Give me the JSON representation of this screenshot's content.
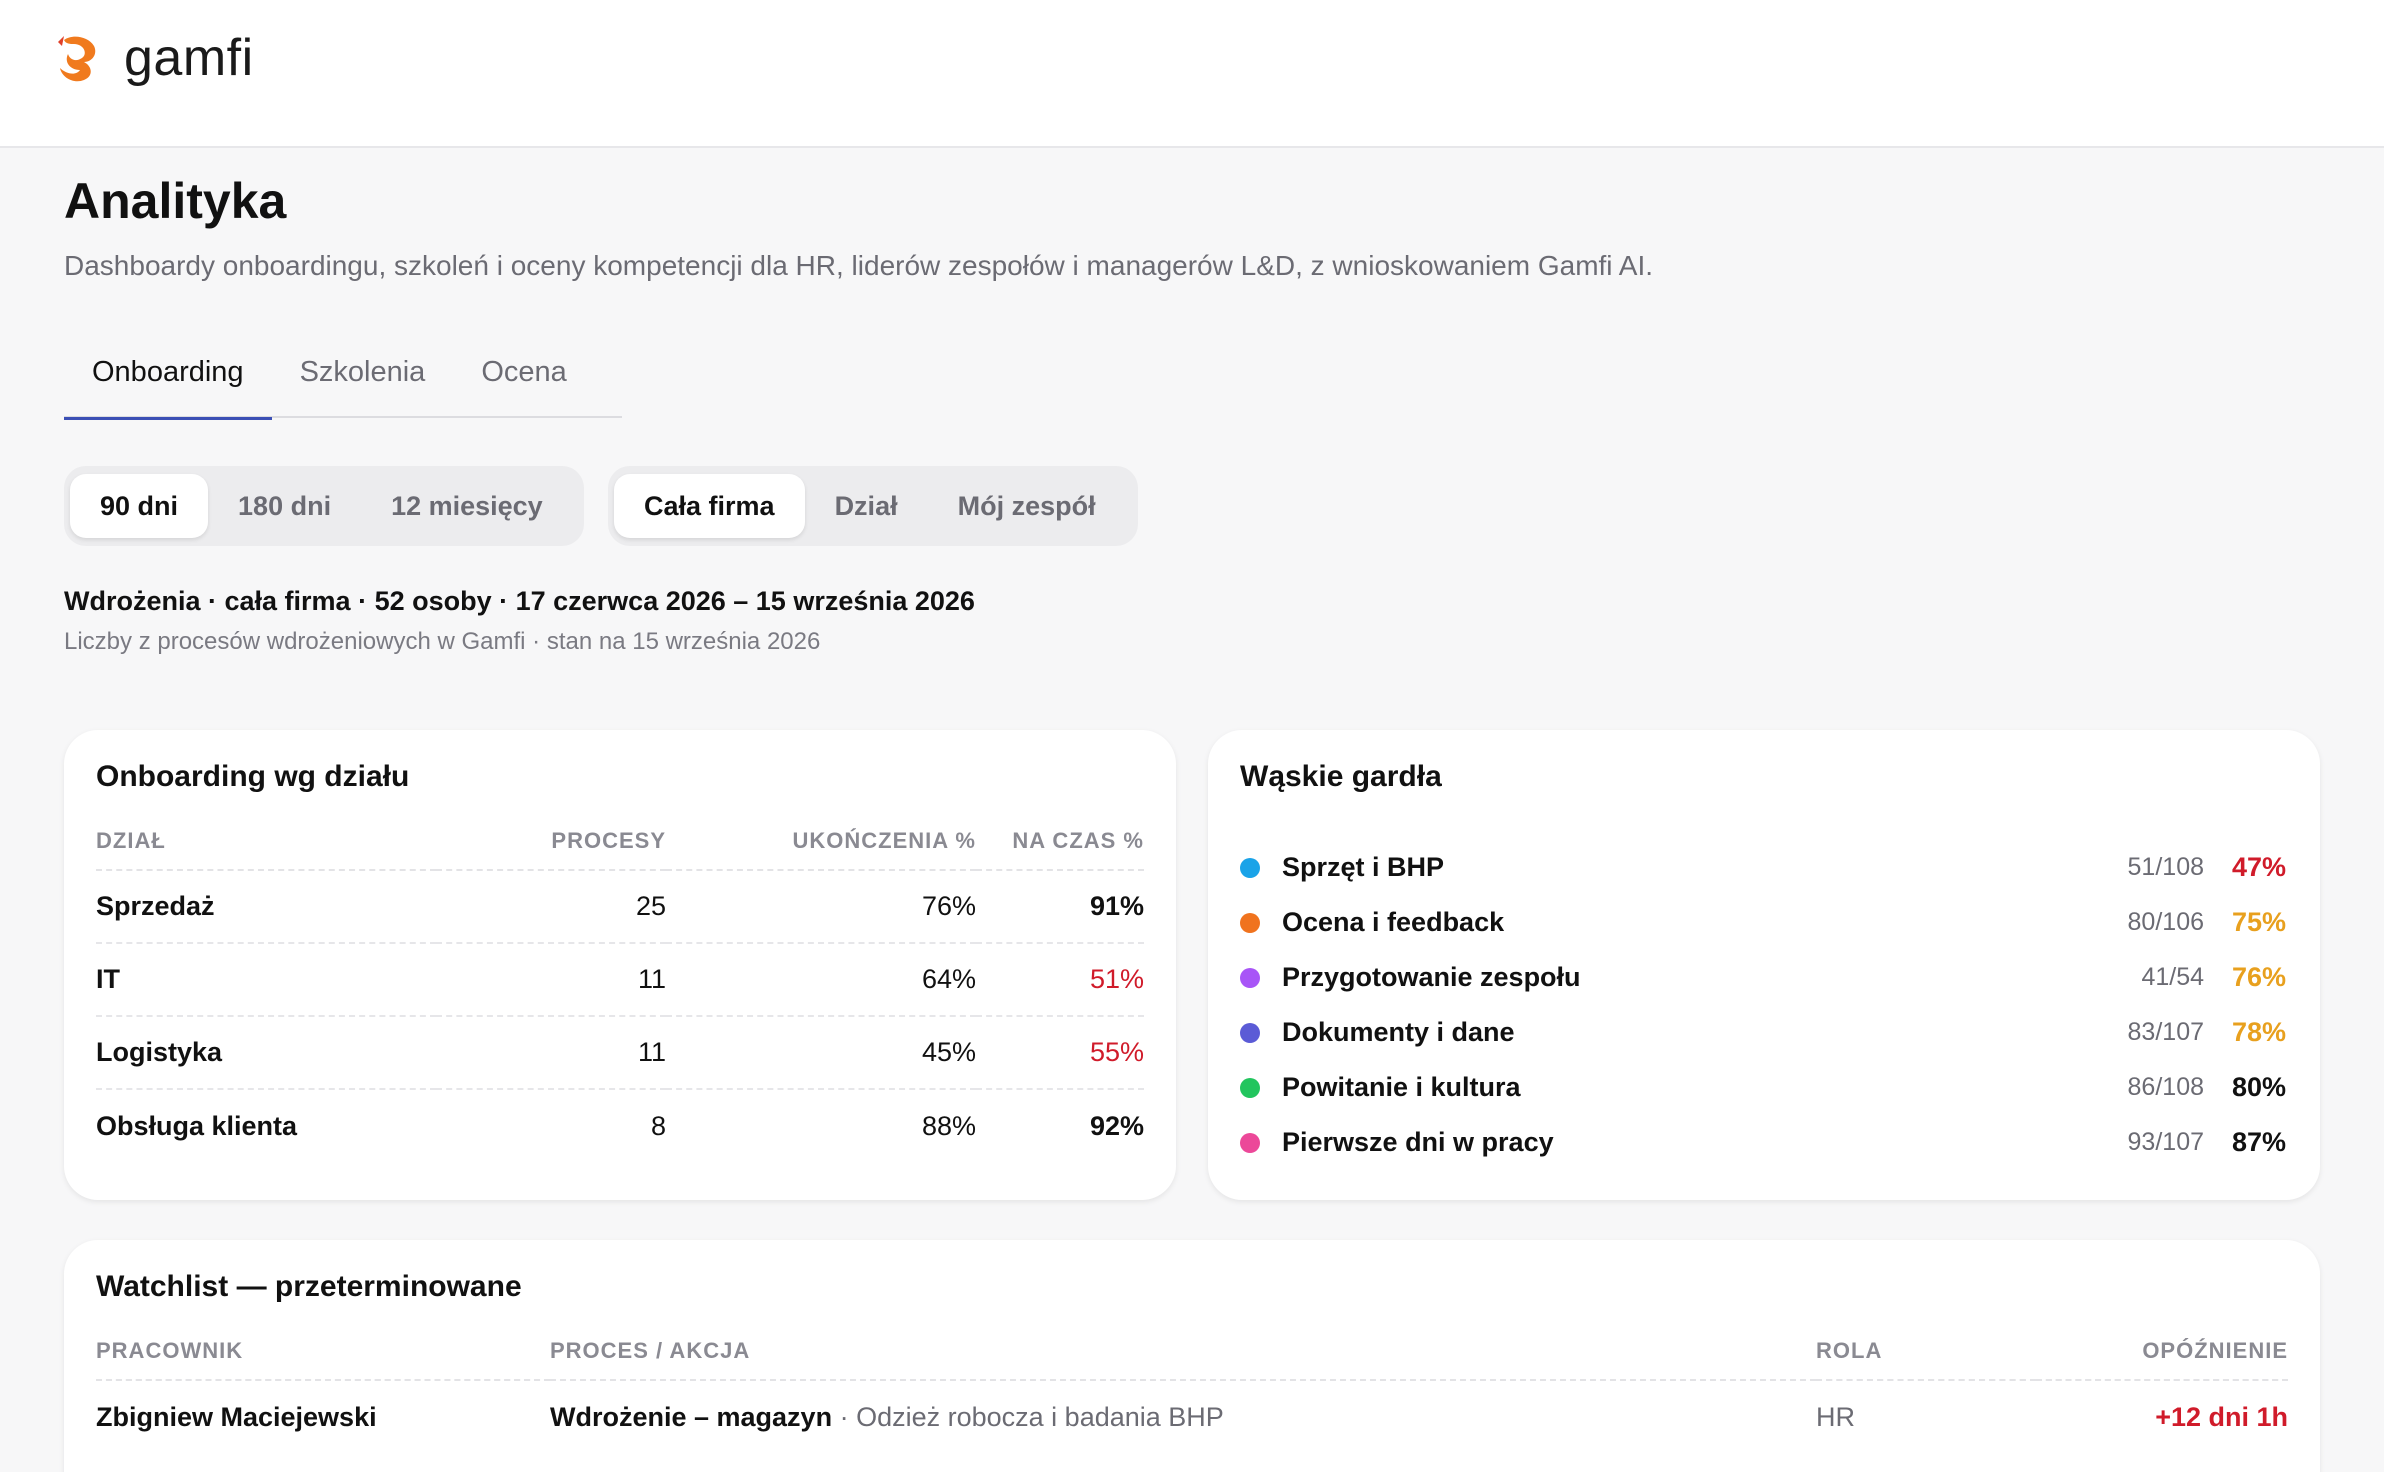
{
  "app": {
    "logo_text": "gamfi"
  },
  "page": {
    "title": "Analityka",
    "subtitle": "Dashboardy onboardingu, szkoleń i oceny kompetencji dla HR, liderów zespołów i managerów L&D, z wnioskowaniem Gamfi AI."
  },
  "tabs": [
    {
      "label": "Onboarding",
      "active": true
    },
    {
      "label": "Szkolenia",
      "active": false
    },
    {
      "label": "Ocena",
      "active": false
    }
  ],
  "period_filter": [
    {
      "label": "90 dni",
      "active": true
    },
    {
      "label": "180 dni",
      "active": false
    },
    {
      "label": "12 miesięcy",
      "active": false
    }
  ],
  "scope_filter": [
    {
      "label": "Cała firma",
      "active": true
    },
    {
      "label": "Dział",
      "active": false
    },
    {
      "label": "Mój zespół",
      "active": false
    }
  ],
  "summary": {
    "line": "Wdrożenia · cała firma · 52 osoby · 17 czerwca 2026 – 15 września 2026",
    "sub": "Liczby z procesów wdrożeniowych w Gamfi · stan na 15 września 2026"
  },
  "dept_card": {
    "title": "Onboarding wg działu",
    "headers": [
      "DZIAŁ",
      "PROCESY",
      "UKOŃCZENIA %",
      "NA CZAS %"
    ],
    "rows": [
      {
        "dept": "Sprzedaż",
        "processes": "25",
        "completion": "76%",
        "on_time": "91%",
        "on_time_status": "ok"
      },
      {
        "dept": "IT",
        "processes": "11",
        "completion": "64%",
        "on_time": "51%",
        "on_time_status": "bad"
      },
      {
        "dept": "Logistyka",
        "processes": "11",
        "completion": "45%",
        "on_time": "55%",
        "on_time_status": "bad"
      },
      {
        "dept": "Obsługa klienta",
        "processes": "8",
        "completion": "88%",
        "on_time": "92%",
        "on_time_status": "ok"
      }
    ]
  },
  "bottleneck_card": {
    "title": "Wąskie gardła",
    "items": [
      {
        "label": "Sprzęt i BHP",
        "count": "51/108",
        "pct": "47%",
        "dot_color": "#1aa3e8",
        "pct_color": "#d01b2a"
      },
      {
        "label": "Ocena i feedback",
        "count": "80/106",
        "pct": "75%",
        "dot_color": "#f0731e",
        "pct_color": "#e8a01e"
      },
      {
        "label": "Przygotowanie zespołu",
        "count": "41/54",
        "pct": "76%",
        "dot_color": "#a855f7",
        "pct_color": "#e8a01e"
      },
      {
        "label": "Dokumenty i dane",
        "count": "83/107",
        "pct": "78%",
        "dot_color": "#5b5bd6",
        "pct_color": "#e8a01e"
      },
      {
        "label": "Powitanie i kultura",
        "count": "86/108",
        "pct": "80%",
        "dot_color": "#22c55e",
        "pct_color": "#111111"
      },
      {
        "label": "Pierwsze dni w pracy",
        "count": "93/107",
        "pct": "87%",
        "dot_color": "#ec4899",
        "pct_color": "#111111"
      }
    ]
  },
  "watchlist_card": {
    "title": "Watchlist — przeterminowane",
    "headers": [
      "PRACOWNIK",
      "PROCES / AKCJA",
      "ROLA",
      "OPÓŹNIENIE"
    ],
    "rows": [
      {
        "employee": "Zbigniew Maciejewski",
        "process": "Wdrożenie – magazyn",
        "action": "· Odzież robocza i badania BHP",
        "role": "HR",
        "delay": "+12 dni 1h"
      }
    ]
  }
}
